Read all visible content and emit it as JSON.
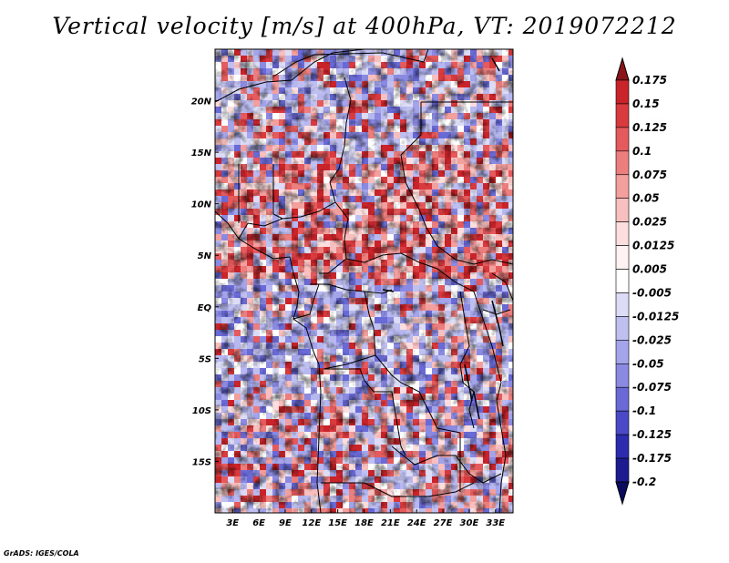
{
  "title": "Vertical velocity [m/s] at 400hPa, VT: 2019072212",
  "credit": "GrADS: IGES/COLA",
  "map": {
    "lon_labels": [
      "3E",
      "6E",
      "9E",
      "12E",
      "15E",
      "18E",
      "21E",
      "24E",
      "27E",
      "30E",
      "33E"
    ],
    "lon_values": [
      3,
      6,
      9,
      12,
      15,
      18,
      21,
      24,
      27,
      30,
      33
    ],
    "lat_labels": [
      "20N",
      "15N",
      "10N",
      "5N",
      "EQ",
      "5S",
      "10S",
      "15S"
    ],
    "lat_values": [
      20,
      15,
      10,
      5,
      0,
      -5,
      -10,
      -15
    ],
    "lon_range": [
      1,
      35
    ],
    "lat_range": [
      -20,
      25
    ]
  },
  "colorbar": {
    "levels": [
      "0.175",
      "0.15",
      "0.125",
      "0.1",
      "0.075",
      "0.05",
      "0.025",
      "0.0125",
      "0.005",
      "-0.005",
      "-0.0125",
      "-0.025",
      "-0.05",
      "-0.075",
      "-0.1",
      "-0.125",
      "-0.175",
      "-0.2"
    ],
    "colors": [
      "#a0151b",
      "#c8242a",
      "#d83a3e",
      "#e55a5c",
      "#ec7e7e",
      "#f29f9e",
      "#f7c0bf",
      "#fbdedd",
      "#fef2f2",
      "#ffffff",
      "#dcdcf6",
      "#c0c0f0",
      "#a4a4ea",
      "#8a8ae2",
      "#6a6ad6",
      "#4a4ac8",
      "#2c2cae",
      "#1c1c90",
      "#0e0e6e"
    ],
    "top_color": "#8a1418",
    "bottom_color": "#0a0a5e"
  }
}
